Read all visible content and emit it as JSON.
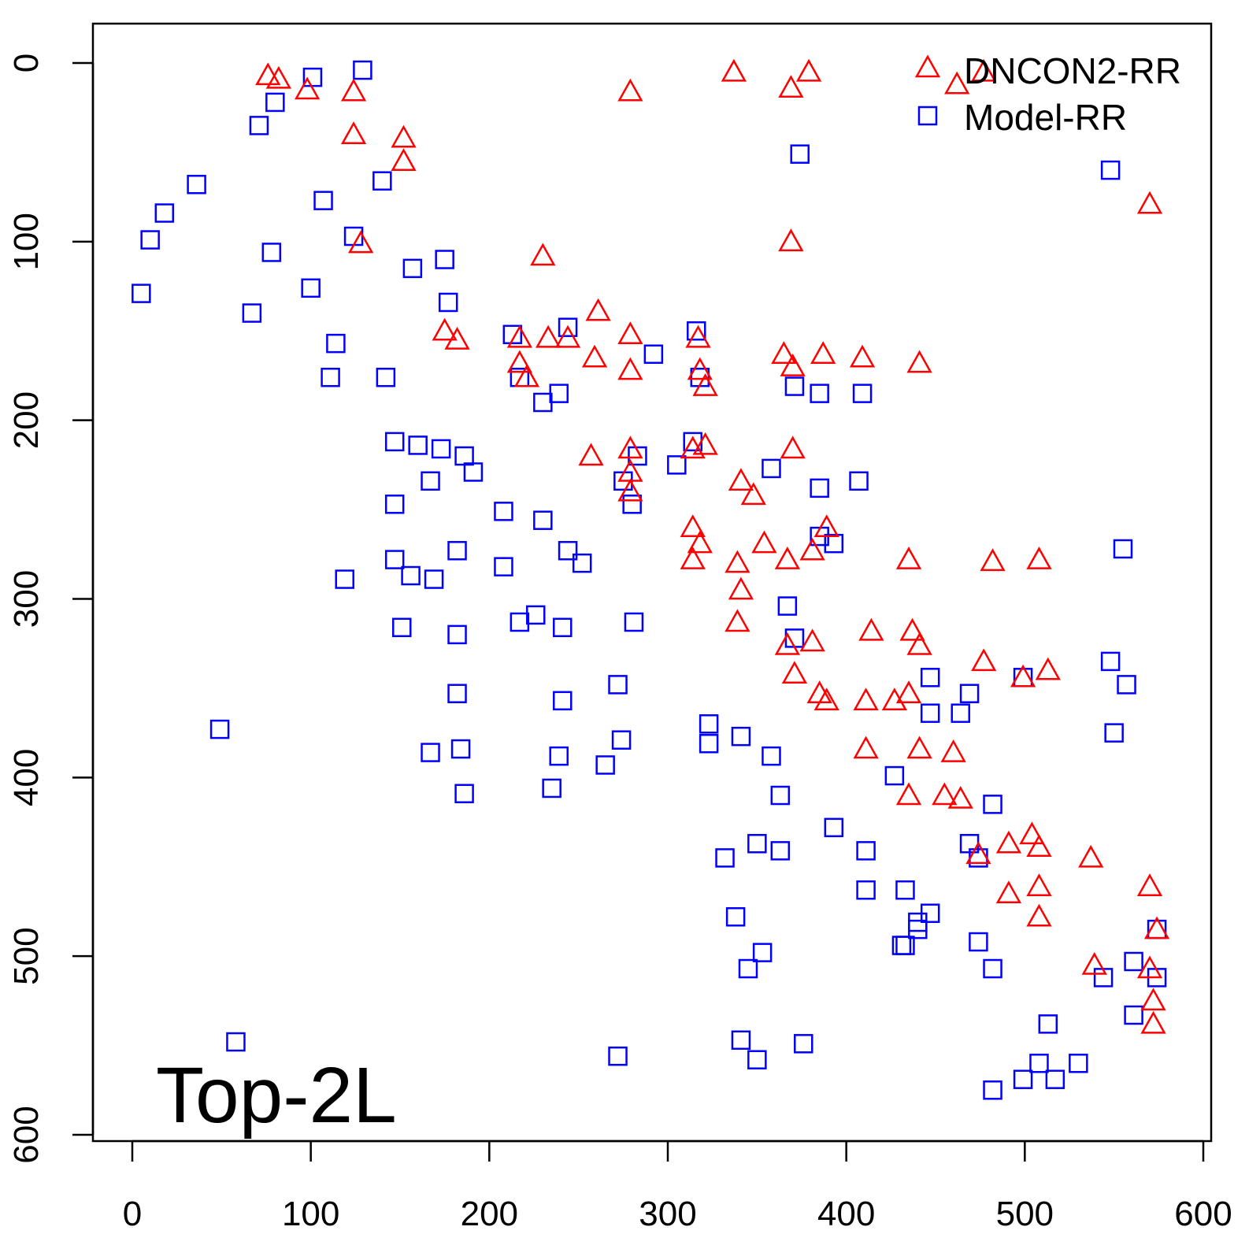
{
  "chart_data": {
    "type": "scatter",
    "title": "",
    "xlabel": "",
    "ylabel": "",
    "xlim": [
      -22,
      605
    ],
    "ylim": [
      -22,
      604
    ],
    "y_inverted": true,
    "grid": false,
    "x_ticks": [
      "0",
      "100",
      "200",
      "300",
      "400",
      "500",
      "600"
    ],
    "y_ticks": [
      "0",
      "100",
      "200",
      "300",
      "400",
      "500",
      "600"
    ],
    "annotation": "Top-2L",
    "legend": {
      "placement": "top-right",
      "entries": [
        "DNCON2-RR",
        "Model-RR"
      ]
    },
    "series": [
      {
        "name": "DNCON2-RR",
        "marker": "triangle",
        "color": "#ff0000",
        "points": [
          [
            76,
            7
          ],
          [
            82,
            9
          ],
          [
            98,
            15
          ],
          [
            124,
            16
          ],
          [
            124,
            40
          ],
          [
            152,
            42
          ],
          [
            152,
            55
          ],
          [
            128,
            101
          ],
          [
            230,
            108
          ],
          [
            279,
            16
          ],
          [
            337,
            5
          ],
          [
            369,
            14
          ],
          [
            379,
            5
          ],
          [
            369,
            100
          ],
          [
            462,
            12
          ],
          [
            477,
            5
          ],
          [
            570,
            79
          ],
          [
            175,
            150
          ],
          [
            182,
            155
          ],
          [
            217,
            154
          ],
          [
            217,
            168
          ],
          [
            221,
            176
          ],
          [
            233,
            154
          ],
          [
            244,
            154
          ],
          [
            259,
            165
          ],
          [
            261,
            139
          ],
          [
            279,
            152
          ],
          [
            279,
            172
          ],
          [
            317,
            154
          ],
          [
            318,
            172
          ],
          [
            321,
            181
          ],
          [
            365,
            163
          ],
          [
            370,
            170
          ],
          [
            387,
            163
          ],
          [
            409,
            165
          ],
          [
            441,
            168
          ],
          [
            257,
            220
          ],
          [
            279,
            216
          ],
          [
            279,
            229
          ],
          [
            279,
            240
          ],
          [
            314,
            216
          ],
          [
            321,
            214
          ],
          [
            370,
            216
          ],
          [
            341,
            234
          ],
          [
            348,
            242
          ],
          [
            314,
            260
          ],
          [
            314,
            278
          ],
          [
            318,
            269
          ],
          [
            339,
            280
          ],
          [
            354,
            269
          ],
          [
            367,
            278
          ],
          [
            389,
            260
          ],
          [
            381,
            273
          ],
          [
            341,
            295
          ],
          [
            339,
            313
          ],
          [
            367,
            326
          ],
          [
            381,
            324
          ],
          [
            371,
            342
          ],
          [
            385,
            353
          ],
          [
            389,
            357
          ],
          [
            411,
            357
          ],
          [
            414,
            318
          ],
          [
            411,
            384
          ],
          [
            427,
            357
          ],
          [
            435,
            353
          ],
          [
            437,
            318
          ],
          [
            441,
            326
          ],
          [
            441,
            384
          ],
          [
            435,
            410
          ],
          [
            455,
            410
          ],
          [
            460,
            386
          ],
          [
            464,
            412
          ],
          [
            435,
            278
          ],
          [
            482,
            279
          ],
          [
            508,
            278
          ],
          [
            477,
            335
          ],
          [
            499,
            344
          ],
          [
            513,
            340
          ],
          [
            474,
            443
          ],
          [
            491,
            437
          ],
          [
            504,
            432
          ],
          [
            508,
            439
          ],
          [
            537,
            445
          ],
          [
            491,
            465
          ],
          [
            508,
            461
          ],
          [
            508,
            478
          ],
          [
            570,
            461
          ],
          [
            574,
            485
          ],
          [
            570,
            507
          ],
          [
            572,
            525
          ],
          [
            572,
            538
          ],
          [
            539,
            505
          ]
        ]
      },
      {
        "name": "Model-RR",
        "marker": "square",
        "color": "#0000ff",
        "points": [
          [
            101,
            8
          ],
          [
            129,
            4
          ],
          [
            71,
            35
          ],
          [
            80,
            22
          ],
          [
            36,
            68
          ],
          [
            18,
            84
          ],
          [
            10,
            99
          ],
          [
            5,
            129
          ],
          [
            67,
            140
          ],
          [
            78,
            106
          ],
          [
            107,
            77
          ],
          [
            100,
            126
          ],
          [
            140,
            66
          ],
          [
            124,
            97
          ],
          [
            114,
            157
          ],
          [
            111,
            176
          ],
          [
            142,
            176
          ],
          [
            157,
            115
          ],
          [
            175,
            110
          ],
          [
            177,
            134
          ],
          [
            213,
            152
          ],
          [
            217,
            176
          ],
          [
            230,
            190
          ],
          [
            244,
            148
          ],
          [
            239,
            185
          ],
          [
            147,
            212
          ],
          [
            160,
            214
          ],
          [
            173,
            216
          ],
          [
            186,
            220
          ],
          [
            191,
            229
          ],
          [
            167,
            234
          ],
          [
            147,
            247
          ],
          [
            147,
            278
          ],
          [
            156,
            287
          ],
          [
            169,
            289
          ],
          [
            182,
            273
          ],
          [
            119,
            289
          ],
          [
            151,
            316
          ],
          [
            182,
            320
          ],
          [
            208,
            251
          ],
          [
            208,
            282
          ],
          [
            217,
            313
          ],
          [
            226,
            309
          ],
          [
            230,
            256
          ],
          [
            244,
            273
          ],
          [
            252,
            280
          ],
          [
            241,
            316
          ],
          [
            275,
            234
          ],
          [
            283,
            220
          ],
          [
            280,
            247
          ],
          [
            292,
            163
          ],
          [
            305,
            225
          ],
          [
            314,
            212
          ],
          [
            316,
            150
          ],
          [
            318,
            176
          ],
          [
            281,
            313
          ],
          [
            272,
            348
          ],
          [
            265,
            393
          ],
          [
            274,
            379
          ],
          [
            241,
            357
          ],
          [
            239,
            388
          ],
          [
            235,
            406
          ],
          [
            182,
            353
          ],
          [
            184,
            384
          ],
          [
            186,
            409
          ],
          [
            167,
            386
          ],
          [
            49,
            373
          ],
          [
            58,
            548
          ],
          [
            272,
            556
          ],
          [
            323,
            370
          ],
          [
            323,
            381
          ],
          [
            341,
            377
          ],
          [
            358,
            388
          ],
          [
            363,
            410
          ],
          [
            367,
            304
          ],
          [
            371,
            322
          ],
          [
            385,
            238
          ],
          [
            385,
            265
          ],
          [
            393,
            269
          ],
          [
            371,
            181
          ],
          [
            385,
            185
          ],
          [
            409,
            185
          ],
          [
            374,
            51
          ],
          [
            407,
            234
          ],
          [
            548,
            60
          ],
          [
            555,
            272
          ],
          [
            358,
            227
          ],
          [
            332,
            445
          ],
          [
            350,
            437
          ],
          [
            363,
            441
          ],
          [
            393,
            428
          ],
          [
            411,
            441
          ],
          [
            411,
            463
          ],
          [
            431,
            494
          ],
          [
            433,
            463
          ],
          [
            433,
            494
          ],
          [
            440,
            485
          ],
          [
            447,
            476
          ],
          [
            474,
            492
          ],
          [
            482,
            507
          ],
          [
            469,
            437
          ],
          [
            482,
            415
          ],
          [
            427,
            399
          ],
          [
            447,
            364
          ],
          [
            464,
            364
          ],
          [
            447,
            344
          ],
          [
            548,
            335
          ],
          [
            557,
            348
          ],
          [
            550,
            375
          ],
          [
            508,
            560
          ],
          [
            499,
            569
          ],
          [
            517,
            569
          ],
          [
            530,
            560
          ],
          [
            513,
            538
          ],
          [
            482,
            575
          ],
          [
            544,
            512
          ],
          [
            561,
            503
          ],
          [
            574,
            512
          ],
          [
            574,
            485
          ],
          [
            561,
            533
          ],
          [
            440,
            481
          ],
          [
            338,
            478
          ],
          [
            345,
            507
          ],
          [
            353,
            498
          ],
          [
            341,
            547
          ],
          [
            350,
            558
          ],
          [
            376,
            549
          ],
          [
            469,
            353
          ],
          [
            499,
            344
          ],
          [
            474,
            445
          ]
        ]
      }
    ]
  }
}
